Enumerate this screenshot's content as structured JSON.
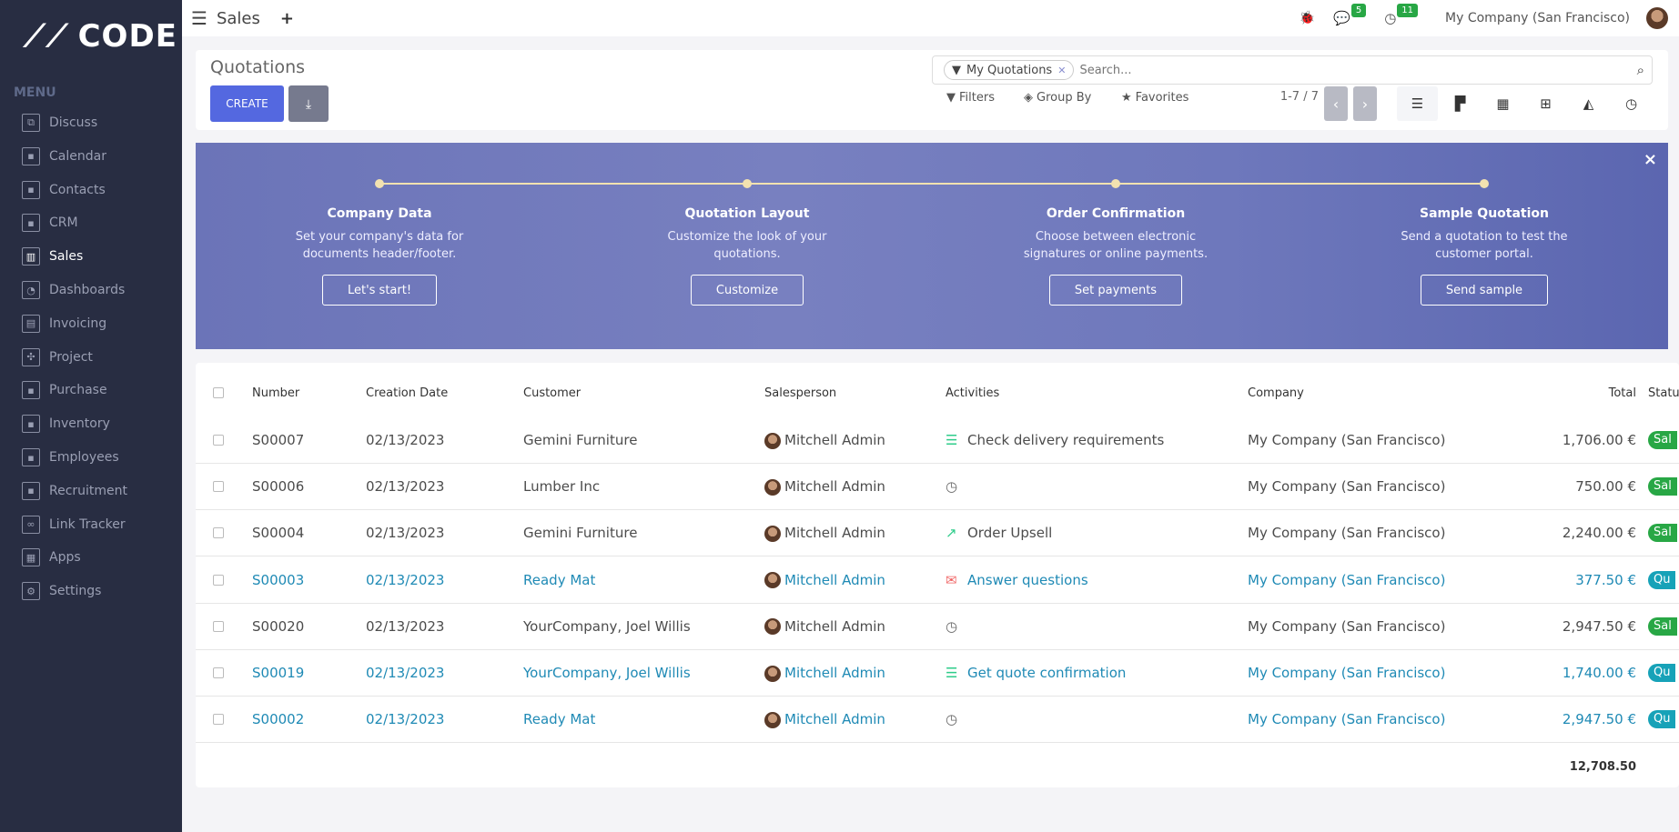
{
  "brand": "CODE",
  "sidebar": {
    "menu_label": "MENU",
    "items": [
      {
        "label": "Discuss",
        "icon": "chat-icon"
      },
      {
        "label": "Calendar",
        "icon": "app-icon"
      },
      {
        "label": "Contacts",
        "icon": "app-icon"
      },
      {
        "label": "CRM",
        "icon": "app-icon"
      },
      {
        "label": "Sales",
        "icon": "sales-icon",
        "active": true
      },
      {
        "label": "Dashboards",
        "icon": "gauge-icon"
      },
      {
        "label": "Invoicing",
        "icon": "invoice-icon"
      },
      {
        "label": "Project",
        "icon": "puzzle-icon"
      },
      {
        "label": "Purchase",
        "icon": "app-icon"
      },
      {
        "label": "Inventory",
        "icon": "app-icon"
      },
      {
        "label": "Employees",
        "icon": "app-icon"
      },
      {
        "label": "Recruitment",
        "icon": "app-icon"
      },
      {
        "label": "Link Tracker",
        "icon": "link-icon"
      },
      {
        "label": "Apps",
        "icon": "grid-icon"
      },
      {
        "label": "Settings",
        "icon": "gear-icon"
      }
    ]
  },
  "topbar": {
    "app": "Sales",
    "messages_count": "5",
    "activities_count": "11",
    "company": "My Company (San Francisco)"
  },
  "control": {
    "title": "Quotations",
    "create": "CREATE",
    "facet": "My Quotations",
    "search_placeholder": "Search...",
    "filters": "Filters",
    "group_by": "Group By",
    "favorites": "Favorites",
    "pager": "1-7 / 7"
  },
  "banner": {
    "close": "×",
    "steps": [
      {
        "title": "Company Data",
        "desc1": "Set your company's data for",
        "desc2": "documents header/footer.",
        "button": "Let's start!"
      },
      {
        "title": "Quotation Layout",
        "desc1": "Customize the look of your",
        "desc2": "quotations.",
        "button": "Customize"
      },
      {
        "title": "Order Confirmation",
        "desc1": "Choose between electronic",
        "desc2": "signatures or online payments.",
        "button": "Set payments"
      },
      {
        "title": "Sample Quotation",
        "desc1": "Send a quotation to test the",
        "desc2": "customer portal.",
        "button": "Send sample"
      }
    ]
  },
  "table": {
    "columns": [
      "Number",
      "Creation Date",
      "Customer",
      "Salesperson",
      "Activities",
      "Company",
      "Total",
      "Status"
    ],
    "rows": [
      {
        "number": "S00007",
        "date": "02/13/2023",
        "customer": "Gemini Furniture",
        "salesperson": "Mitchell Admin",
        "activity": "Check delivery requirements",
        "activity_icon": "tasks-icon",
        "company": "My Company (San Francisco)",
        "total": "1,706.00 €",
        "status": "Sal",
        "link": false
      },
      {
        "number": "S00006",
        "date": "02/13/2023",
        "customer": "Lumber Inc",
        "salesperson": "Mitchell Admin",
        "activity": "",
        "activity_icon": "clock-icon",
        "company": "My Company (San Francisco)",
        "total": "750.00 €",
        "status": "Sal",
        "link": false
      },
      {
        "number": "S00004",
        "date": "02/13/2023",
        "customer": "Gemini Furniture",
        "salesperson": "Mitchell Admin",
        "activity": "Order Upsell",
        "activity_icon": "chart-up-icon",
        "company": "My Company (San Francisco)",
        "total": "2,240.00 €",
        "status": "Sal",
        "link": false
      },
      {
        "number": "S00003",
        "date": "02/13/2023",
        "customer": "Ready Mat",
        "salesperson": "Mitchell Admin",
        "activity": "Answer questions",
        "activity_icon": "envelope-icon",
        "company": "My Company (San Francisco)",
        "total": "377.50 €",
        "status": "Qu",
        "link": true
      },
      {
        "number": "S00020",
        "date": "02/13/2023",
        "customer": "YourCompany, Joel Willis",
        "salesperson": "Mitchell Admin",
        "activity": "",
        "activity_icon": "clock-icon",
        "company": "My Company (San Francisco)",
        "total": "2,947.50 €",
        "status": "Sal",
        "link": false
      },
      {
        "number": "S00019",
        "date": "02/13/2023",
        "customer": "YourCompany, Joel Willis",
        "salesperson": "Mitchell Admin",
        "activity": "Get quote confirmation",
        "activity_icon": "tasks-icon",
        "company": "My Company (San Francisco)",
        "total": "1,740.00 €",
        "status": "Qu",
        "link": true
      },
      {
        "number": "S00002",
        "date": "02/13/2023",
        "customer": "Ready Mat",
        "salesperson": "Mitchell Admin",
        "activity": "",
        "activity_icon": "clock-icon",
        "company": "My Company (San Francisco)",
        "total": "2,947.50 €",
        "status": "Qu",
        "link": true
      }
    ],
    "sum_total": "12,708.50"
  },
  "colors": {
    "sidebar": "#282d42",
    "accent": "#5468e0",
    "link": "#1f8ab5",
    "sales_order": "#28a745",
    "quotation": "#17a2b8"
  }
}
